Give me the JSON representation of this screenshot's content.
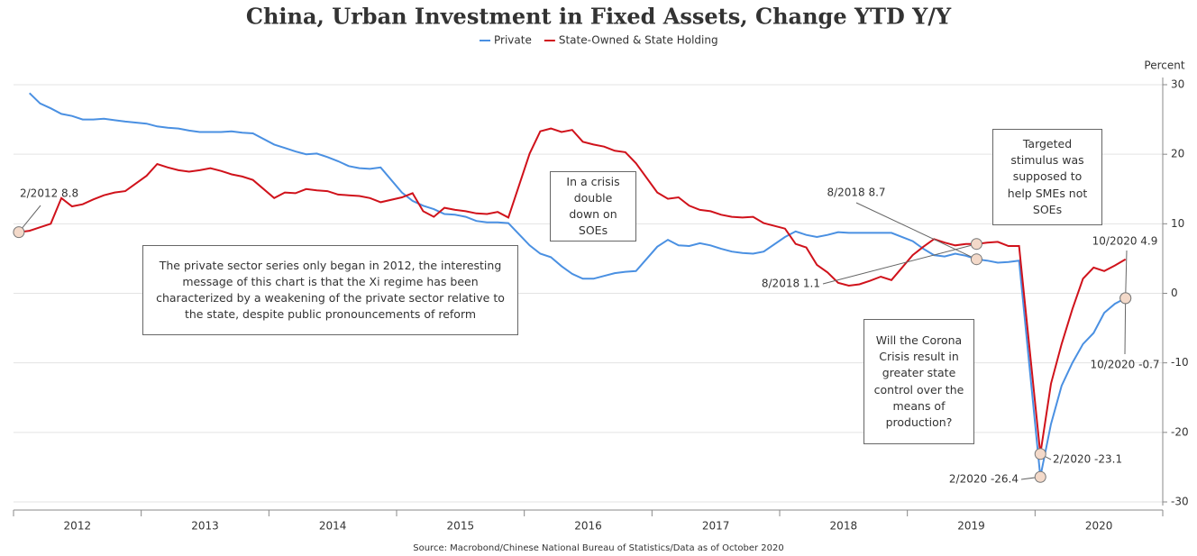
{
  "chart_data": {
    "type": "line",
    "title": "China, Urban Investment in Fixed Assets, Change YTD Y/Y",
    "y_label": "Percent",
    "source": "Source: Macrobond/Chinese National Bureau of Statistics/Data as of October 2020",
    "x": [
      "2012-02",
      "2012-03",
      "2012-04",
      "2012-05",
      "2012-06",
      "2012-07",
      "2012-08",
      "2012-09",
      "2012-10",
      "2012-11",
      "2012-12",
      "2013-02",
      "2013-03",
      "2013-04",
      "2013-05",
      "2013-06",
      "2013-07",
      "2013-08",
      "2013-09",
      "2013-10",
      "2013-11",
      "2013-12",
      "2014-02",
      "2014-03",
      "2014-04",
      "2014-05",
      "2014-06",
      "2014-07",
      "2014-08",
      "2014-09",
      "2014-10",
      "2014-11",
      "2014-12",
      "2015-02",
      "2015-03",
      "2015-04",
      "2015-05",
      "2015-06",
      "2015-07",
      "2015-08",
      "2015-09",
      "2015-10",
      "2015-11",
      "2015-12",
      "2016-02",
      "2016-03",
      "2016-04",
      "2016-05",
      "2016-06",
      "2016-07",
      "2016-08",
      "2016-09",
      "2016-10",
      "2016-11",
      "2016-12",
      "2017-02",
      "2017-03",
      "2017-04",
      "2017-05",
      "2017-06",
      "2017-07",
      "2017-08",
      "2017-09",
      "2017-10",
      "2017-11",
      "2017-12",
      "2018-02",
      "2018-03",
      "2018-04",
      "2018-05",
      "2018-06",
      "2018-07",
      "2018-08",
      "2018-09",
      "2018-10",
      "2018-11",
      "2018-12",
      "2019-02",
      "2019-03",
      "2019-04",
      "2019-05",
      "2019-06",
      "2019-07",
      "2019-08",
      "2019-09",
      "2019-10",
      "2019-11",
      "2019-12",
      "2020-02",
      "2020-03",
      "2020-04",
      "2020-05",
      "2020-06",
      "2020-07",
      "2020-08",
      "2020-09",
      "2020-10"
    ],
    "series": [
      {
        "name": "Private",
        "color": "#4a90e2",
        "values": [
          null,
          28.8,
          27.3,
          26.6,
          25.8,
          25.5,
          25.0,
          25.0,
          25.1,
          24.9,
          24.7,
          24.4,
          24.0,
          23.8,
          23.7,
          23.4,
          23.2,
          23.2,
          23.2,
          23.3,
          23.1,
          23.0,
          21.4,
          20.9,
          20.4,
          20.0,
          20.1,
          19.6,
          19.0,
          18.3,
          18.0,
          17.9,
          18.1,
          14.5,
          13.3,
          12.6,
          12.1,
          11.4,
          11.3,
          11.0,
          10.4,
          10.2,
          10.2,
          10.1,
          6.9,
          5.7,
          5.2,
          3.9,
          2.8,
          2.1,
          2.1,
          2.5,
          2.9,
          3.1,
          3.2,
          6.7,
          7.7,
          6.9,
          6.8,
          7.2,
          6.9,
          6.4,
          6.0,
          5.8,
          5.7,
          6.0,
          8.1,
          8.9,
          8.4,
          8.1,
          8.4,
          8.8,
          8.7,
          8.7,
          8.7,
          8.7,
          8.7,
          7.5,
          6.4,
          5.5,
          5.3,
          5.7,
          5.4,
          4.9,
          4.7,
          4.4,
          4.5,
          4.7,
          -26.4,
          -18.8,
          -13.3,
          -10.0,
          -7.3,
          -5.7,
          -2.8,
          -1.5,
          -0.7
        ]
      },
      {
        "name": "State-Owned & State Holding",
        "color": "#d0121b",
        "values": [
          8.8,
          9.0,
          9.5,
          10.0,
          13.7,
          12.5,
          12.8,
          13.5,
          14.1,
          14.5,
          14.7,
          16.9,
          18.6,
          18.1,
          17.7,
          17.5,
          17.7,
          18.0,
          17.6,
          17.1,
          16.8,
          16.3,
          13.7,
          14.5,
          14.4,
          15.0,
          14.8,
          14.7,
          14.2,
          14.1,
          14.0,
          13.7,
          13.1,
          13.8,
          14.4,
          11.8,
          11.0,
          12.3,
          12.0,
          11.8,
          11.5,
          11.4,
          11.7,
          10.9,
          20.1,
          23.3,
          23.7,
          23.2,
          23.5,
          21.8,
          21.4,
          21.1,
          20.5,
          20.3,
          18.7,
          14.5,
          13.6,
          13.8,
          12.6,
          12.0,
          11.8,
          11.3,
          11.0,
          10.9,
          11.0,
          10.1,
          9.3,
          7.1,
          6.6,
          4.1,
          3.0,
          1.5,
          1.1,
          1.3,
          1.8,
          2.4,
          1.9,
          5.5,
          6.7,
          7.8,
          7.3,
          6.9,
          7.1,
          7.1,
          7.3,
          7.4,
          6.8,
          6.8,
          -23.1,
          -13.0,
          -7.3,
          -2.3,
          2.1,
          3.7,
          3.2,
          4.0,
          4.9
        ]
      }
    ],
    "xlim": [
      2012,
      2021
    ],
    "xticks": [
      2012,
      2013,
      2014,
      2015,
      2016,
      2017,
      2018,
      2019,
      2020
    ],
    "ylim": [
      -30,
      30
    ],
    "yticks": [
      30,
      20,
      10,
      0,
      -10,
      -20,
      -30
    ],
    "grid": true,
    "legend": "top",
    "point_labels": [
      "2/2012 8.8",
      "8/2018 8.7",
      "8/2018 1.1",
      "2/2020 -23.1",
      "2/2020 -26.4",
      "10/2020 4.9",
      "10/2020 -0.7"
    ],
    "text_boxes": [
      "The private sector series only began in 2012, the interesting message of this chart is that the Xi regime has been characterized by a weakening of the private sector relative to the state, despite public pronouncements of reform",
      "In a crisis double down on SOEs",
      "Targeted stimulus was supposed to help SMEs not SOEs",
      "Will the Corona Crisis result in greater state control over the means of production?"
    ]
  }
}
